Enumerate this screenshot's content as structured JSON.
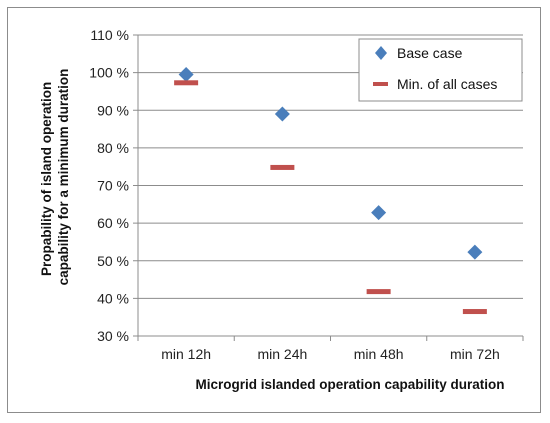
{
  "chart_data": {
    "type": "scatter",
    "categories": [
      "min 12h",
      "min 24h",
      "min 48h",
      "min 72h"
    ],
    "series": [
      {
        "name": "Base case",
        "marker": "diamond",
        "color": "#4a7ebb",
        "values": [
          99.5,
          89.0,
          62.8,
          52.3
        ]
      },
      {
        "name": "Min. of all cases",
        "marker": "dash",
        "color": "#c0504d",
        "values": [
          97.3,
          74.8,
          41.8,
          36.5
        ]
      }
    ],
    "ylim": [
      30,
      110
    ],
    "yticks": [
      30,
      40,
      50,
      60,
      70,
      80,
      90,
      100,
      110
    ],
    "ytick_labels": [
      "30 %",
      "40 %",
      "50 %",
      "60 %",
      "70 %",
      "80 %",
      "90 %",
      "100 %",
      "110 %"
    ],
    "xlabel": "Microgrid islanded operation capability duration",
    "ylabel_lines": [
      "Propability of island operation",
      "capability for a minimum duration"
    ],
    "grid": true,
    "legend_position": "top-right"
  }
}
